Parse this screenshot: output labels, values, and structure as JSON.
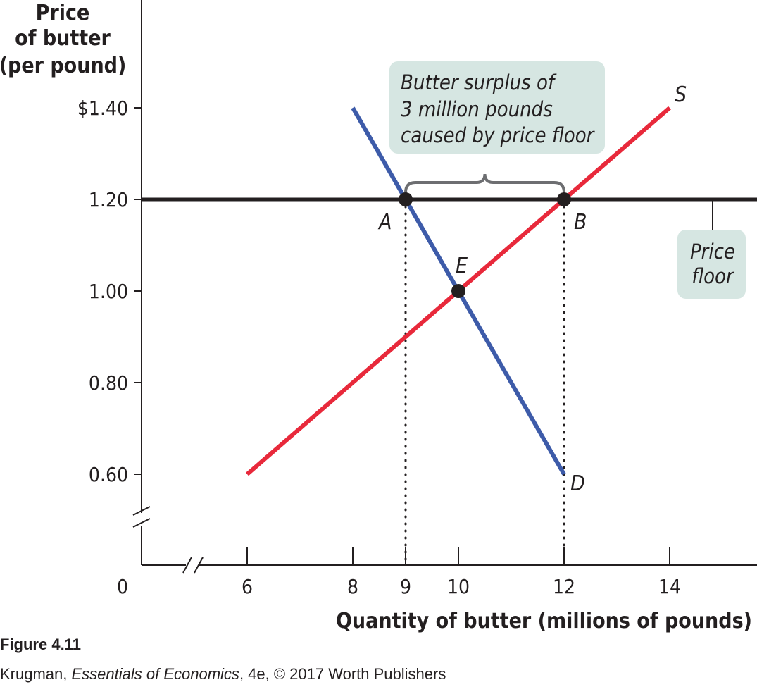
{
  "chart_data": {
    "type": "line",
    "ylabel": [
      "Price",
      "of butter",
      "(per pound)"
    ],
    "xlabel": "Quantity of butter (millions of pounds)",
    "origin_label": "0",
    "x_ticks": [
      6,
      8,
      9,
      10,
      12,
      14
    ],
    "y_ticks": [
      {
        "value": 0.6,
        "label": "0.60"
      },
      {
        "value": 0.8,
        "label": "0.80"
      },
      {
        "value": 1.0,
        "label": "1.00"
      },
      {
        "value": 1.2,
        "label": "1.20"
      },
      {
        "value": 1.4,
        "label": "$1.40"
      }
    ],
    "xlim": [
      6,
      15.7
    ],
    "ylim": [
      0.6,
      1.4
    ],
    "axis_breaks": true,
    "series": [
      {
        "name": "S",
        "color": "#e8293b",
        "x": [
          6,
          14
        ],
        "y": [
          0.6,
          1.4
        ]
      },
      {
        "name": "D",
        "color": "#3d5ba9",
        "x": [
          8,
          12
        ],
        "y": [
          1.4,
          0.6
        ]
      }
    ],
    "price_floor": {
      "value": 1.2,
      "color": "#231f20"
    },
    "points": [
      {
        "name": "A",
        "x": 9,
        "y": 1.2
      },
      {
        "name": "B",
        "x": 12,
        "y": 1.2
      },
      {
        "name": "E",
        "x": 10,
        "y": 1.0
      }
    ],
    "annotations": {
      "surplus": [
        "Butter surplus of",
        "3 million pounds",
        "caused by price floor"
      ],
      "floor": [
        "Price",
        "floor"
      ]
    },
    "colors": {
      "callout": "#d6e6e2",
      "brace": "#6d6e71"
    }
  },
  "caption": {
    "figure": "Figure 4.11",
    "author": "Krugman, ",
    "book": "Essentials of Economics",
    "rest": ", 4e, © 2017 Worth Publishers"
  }
}
